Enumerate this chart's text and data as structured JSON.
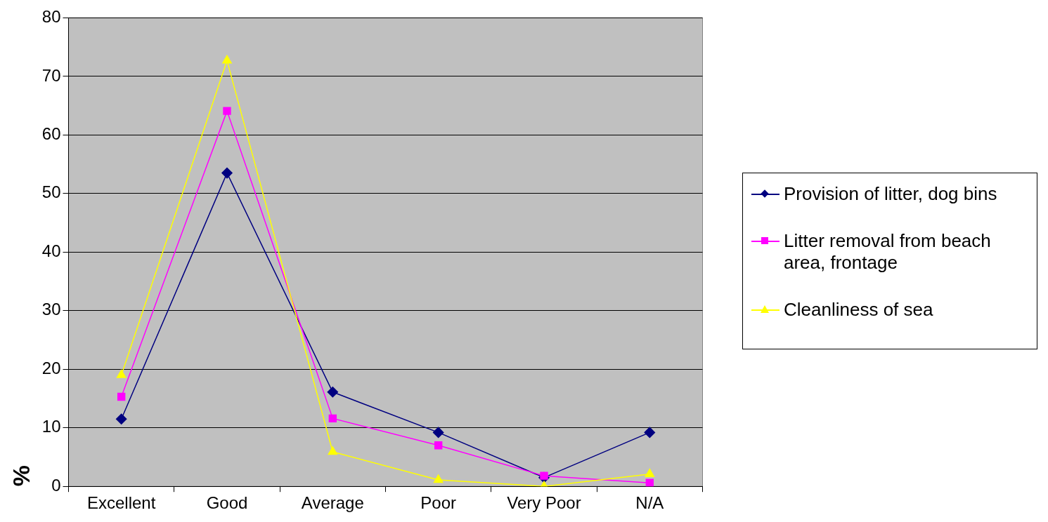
{
  "chart_data": {
    "type": "line",
    "ylabel": "%",
    "categories": [
      "Excellent",
      "Good",
      "Average",
      "Poor",
      "Very Poor",
      "N/A"
    ],
    "series": [
      {
        "name": "Provision of litter, dog bins",
        "color": "#000080",
        "marker": "diamond",
        "values": [
          11.5,
          53.5,
          16.1,
          9.2,
          1.5,
          9.2
        ]
      },
      {
        "name": "Litter removal from beach area, frontage",
        "color": "#ff00ff",
        "marker": "square",
        "values": [
          15.3,
          64.1,
          11.6,
          7.0,
          1.8,
          0.6
        ]
      },
      {
        "name": "Cleanliness of sea",
        "color": "#ffff00",
        "marker": "triangle",
        "values": [
          19.0,
          72.7,
          5.9,
          1.1,
          0,
          2.1
        ]
      }
    ],
    "ylim": [
      0,
      80
    ],
    "yticks": [
      0,
      10,
      20,
      30,
      40,
      50,
      60,
      70,
      80
    ],
    "grid": "y",
    "legend": "right"
  }
}
